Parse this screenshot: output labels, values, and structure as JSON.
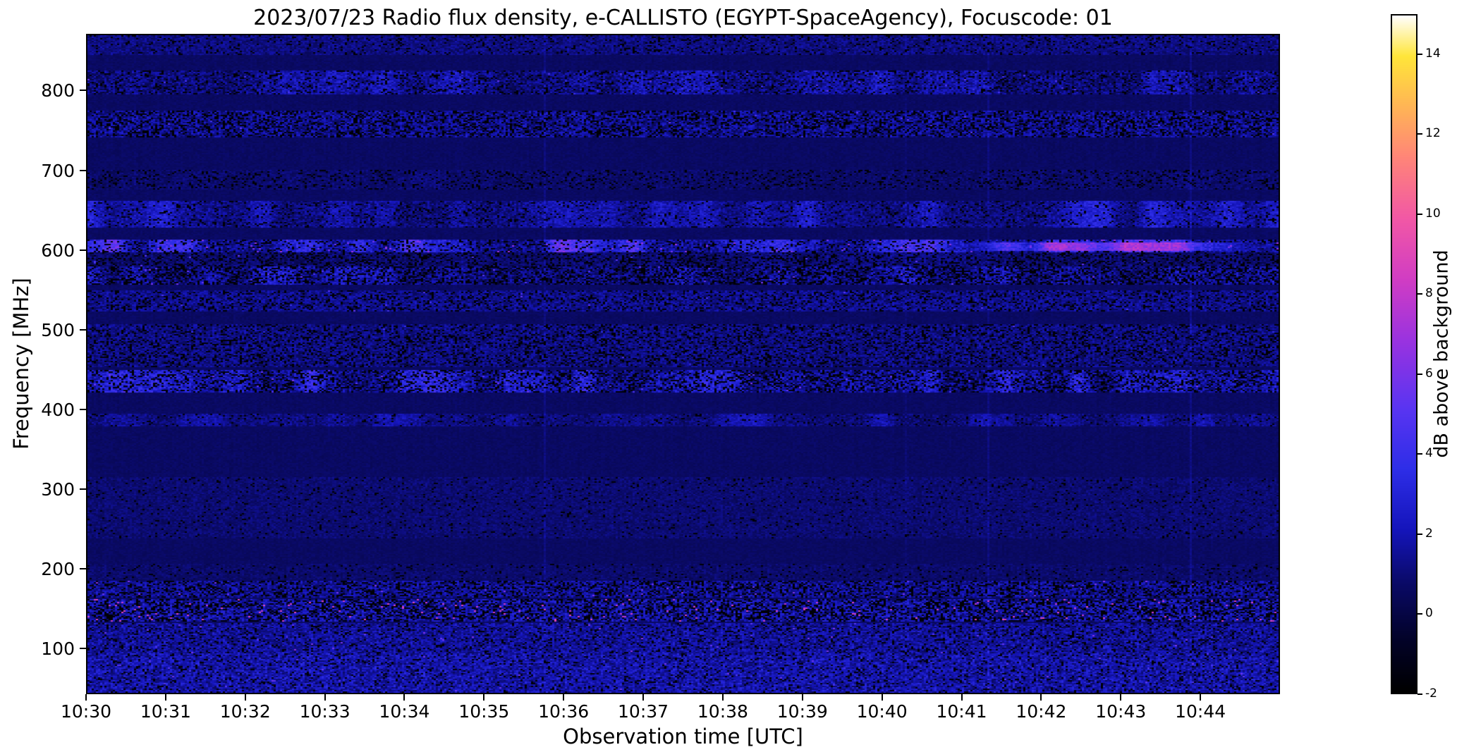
{
  "figure": {
    "title": "2023/07/23  Radio flux density, e-CALLISTO (EGYPT-SpaceAgency), Focuscode: 01",
    "date": "2023/07/23",
    "instrument": "e-CALLISTO (EGYPT-SpaceAgency)",
    "focuscode": "01",
    "xlabel": "Observation time [UTC]",
    "ylabel": "Frequency [MHz]",
    "colorbar_label": "dB above background"
  },
  "chart_data": {
    "type": "heatmap",
    "title": "2023/07/23  Radio flux density, e-CALLISTO (EGYPT-SpaceAgency), Focuscode: 01",
    "xlabel": "Observation time [UTC]",
    "ylabel": "Frequency [MHz]",
    "x_ticks": [
      "10:30",
      "10:31",
      "10:32",
      "10:33",
      "10:34",
      "10:35",
      "10:36",
      "10:37",
      "10:38",
      "10:39",
      "10:40",
      "10:41",
      "10:42",
      "10:43",
      "10:44"
    ],
    "x_range_utc": [
      "10:30:00",
      "10:45:00"
    ],
    "x_total_minutes": 15,
    "y_ticks": [
      100,
      200,
      300,
      400,
      500,
      600,
      700,
      800
    ],
    "y_range_mhz": [
      43,
      871
    ],
    "grid": false,
    "colorbar": {
      "label": "dB above background",
      "ticks": [
        -2,
        0,
        2,
        4,
        6,
        8,
        10,
        12,
        14
      ],
      "range": [
        -2,
        15
      ],
      "colormap_stops": [
        [
          0.0,
          "#000000"
        ],
        [
          0.08,
          "#03032a"
        ],
        [
          0.16,
          "#0a0a66"
        ],
        [
          0.24,
          "#1515bb"
        ],
        [
          0.33,
          "#2e2ee8"
        ],
        [
          0.42,
          "#5a35f2"
        ],
        [
          0.52,
          "#9a33e0"
        ],
        [
          0.61,
          "#d13dc4"
        ],
        [
          0.7,
          "#f258a6"
        ],
        [
          0.79,
          "#ff8579"
        ],
        [
          0.87,
          "#ffb854"
        ],
        [
          0.94,
          "#ffe63a"
        ],
        [
          1.0,
          "#ffffff"
        ]
      ]
    },
    "background_db": 0.6,
    "bands": [
      {
        "f0": 846,
        "f1": 871,
        "add": 0.5,
        "amp": 0.7,
        "dark": 0.1,
        "hot": 0,
        "hotdb": 0,
        "blob": 0,
        "stria": 0
      },
      {
        "f0": 797,
        "f1": 827,
        "add": 1.0,
        "amp": 1.1,
        "dark": 0.14,
        "hot": 0.003,
        "hotdb": 4,
        "blob": 1,
        "stria": 0
      },
      {
        "f0": 743,
        "f1": 776,
        "add": 0.8,
        "amp": 1.2,
        "dark": 0.26,
        "hot": 0.002,
        "hotdb": 4,
        "blob": 0,
        "stria": 0
      },
      {
        "f0": 676,
        "f1": 701,
        "add": 0.2,
        "amp": 0.5,
        "dark": 0.14,
        "hot": 0,
        "hotdb": 0,
        "blob": 1,
        "stria": 0
      },
      {
        "f0": 630,
        "f1": 663,
        "add": 1.3,
        "amp": 0.9,
        "dark": 0.1,
        "hot": 0,
        "hotdb": 0,
        "blob": 1,
        "stria": 0
      },
      {
        "f0": 598,
        "f1": 613,
        "add": 2.7,
        "amp": 1.1,
        "dark": 0.17,
        "hot": 0.012,
        "hotdb": 5.5,
        "blob": 1,
        "stria": 0,
        "seg": {
          "t0": 0.72,
          "t1": 0.99,
          "f0": 599,
          "f1": 610,
          "db": 8
        }
      },
      {
        "f0": 580,
        "f1": 597,
        "add": 0.3,
        "amp": 0.7,
        "dark": 0.22,
        "hot": 0.002,
        "hotdb": 4,
        "blob": 1,
        "stria": 0
      },
      {
        "f0": 556,
        "f1": 579,
        "add": 1.1,
        "amp": 1.2,
        "dark": 0.3,
        "hot": 0.004,
        "hotdb": 4.5,
        "blob": 1,
        "stria": 0
      },
      {
        "f0": 524,
        "f1": 549,
        "add": 0.7,
        "amp": 0.9,
        "dark": 0.18,
        "hot": 0.002,
        "hotdb": 4,
        "blob": 0,
        "stria": 0
      },
      {
        "f0": 452,
        "f1": 507,
        "add": 0.55,
        "amp": 0.9,
        "dark": 0.2,
        "hot": 0.001,
        "hotdb": 3.5,
        "blob": 0,
        "stria": 0
      },
      {
        "f0": 420,
        "f1": 449,
        "add": 1.5,
        "amp": 1.3,
        "dark": 0.26,
        "hot": 0.004,
        "hotdb": 4.5,
        "blob": 1,
        "stria": 0
      },
      {
        "f0": 379,
        "f1": 394,
        "add": 0.8,
        "amp": 0.7,
        "dark": 0.06,
        "hot": 0,
        "hotdb": 0,
        "blob": 1,
        "stria": 0
      },
      {
        "f0": 238,
        "f1": 314,
        "add": 0.25,
        "amp": 0.45,
        "dark": 0.05,
        "hot": 0,
        "hotdb": 0,
        "blob": 0,
        "stria": 0
      },
      {
        "f0": 186,
        "f1": 206,
        "add": 0.15,
        "amp": 0.4,
        "dark": 0.06,
        "hot": 0,
        "hotdb": 0,
        "blob": 0,
        "stria": 0
      },
      {
        "f0": 163,
        "f1": 185,
        "add": 0.9,
        "amp": 1.1,
        "dark": 0.28,
        "hot": 0.006,
        "hotdb": 5,
        "blob": 0,
        "stria": 0
      },
      {
        "f0": 133,
        "f1": 162,
        "add": 1.2,
        "amp": 1.4,
        "dark": 0.32,
        "hot": 0.016,
        "hotdb": 7.5,
        "blob": 0,
        "stria": 0
      },
      {
        "f0": 93,
        "f1": 132,
        "add": 0.9,
        "amp": 1.0,
        "dark": 0.12,
        "hot": 0.004,
        "hotdb": 5,
        "blob": 0,
        "stria": 1
      },
      {
        "f0": 43,
        "f1": 92,
        "add": 1.1,
        "amp": 1.1,
        "dark": 0.1,
        "hot": 0.003,
        "hotdb": 4.5,
        "blob": 0,
        "stria": 1
      }
    ]
  }
}
